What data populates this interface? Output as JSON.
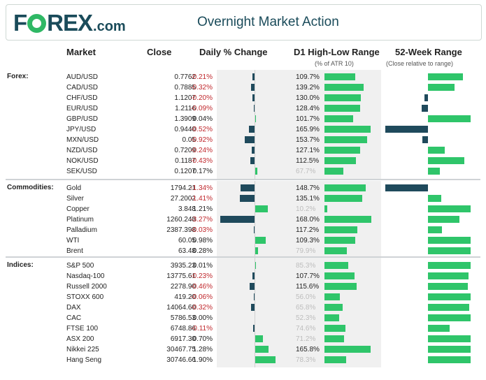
{
  "header": {
    "logo_letters_1": "F",
    "logo_letters_2": "REX",
    "logo_suffix": ".com",
    "title": "Overnight Market Action"
  },
  "columns": {
    "market": "Market",
    "close": "Close",
    "daily_change": "Daily % Change",
    "d1_range": "D1 High-Low Range",
    "d1_range_sub": "(% of ATR 10)",
    "week52": "52-Week Range",
    "week52_sub": "(Close relative to range)"
  },
  "colors": {
    "negative_bar": "#1f4a5c",
    "positive_bar": "#2fc56a",
    "negative_text": "#c0282d",
    "brand": "#1a4b5a"
  },
  "chart_data": {
    "type": "table",
    "title": "Overnight Market Action",
    "groups": [
      {
        "label": "Forex:",
        "rows": [
          {
            "market": "AUD/USD",
            "close": "0.7762",
            "change": "-0.21%",
            "change_val": -0.21,
            "d1": "109.7%",
            "d1_val": 109.7,
            "d1_faded": false,
            "w52": 0.78
          },
          {
            "market": "CAD/USD",
            "close": "0.7885",
            "change": "-0.32%",
            "change_val": -0.32,
            "d1": "139.2%",
            "d1_val": 139.2,
            "d1_faded": false,
            "w52": 0.6
          },
          {
            "market": "CHF/USD",
            "close": "1.1207",
            "change": "-0.20%",
            "change_val": -0.2,
            "d1": "130.0%",
            "d1_val": 130.0,
            "d1_faded": false,
            "w52": -0.08
          },
          {
            "market": "EUR/USD",
            "close": "1.2116",
            "change": "-0.09%",
            "change_val": -0.09,
            "d1": "128.4%",
            "d1_val": 128.4,
            "d1_faded": false,
            "w52": -0.14
          },
          {
            "market": "GBP/USD",
            "close": "1.3909",
            "change": "0.04%",
            "change_val": 0.04,
            "d1": "101.7%",
            "d1_val": 101.7,
            "d1_faded": false,
            "w52": 0.95
          },
          {
            "market": "JPY/USD",
            "close": "0.9440",
            "change": "-0.52%",
            "change_val": -0.52,
            "d1": "165.9%",
            "d1_val": 165.9,
            "d1_faded": false,
            "w52": -0.95
          },
          {
            "market": "MXN/USD",
            "close": "0.05",
            "change": "-0.92%",
            "change_val": -0.92,
            "d1": "153.7%",
            "d1_val": 153.7,
            "d1_faded": false,
            "w52": -0.12
          },
          {
            "market": "NZD/USD",
            "close": "0.7209",
            "change": "-0.24%",
            "change_val": -0.24,
            "d1": "127.1%",
            "d1_val": 127.1,
            "d1_faded": false,
            "w52": 0.37
          },
          {
            "market": "NOK/USD",
            "close": "0.1187",
            "change": "-0.43%",
            "change_val": -0.43,
            "d1": "112.5%",
            "d1_val": 112.5,
            "d1_faded": false,
            "w52": 0.81
          },
          {
            "market": "SEK/USD",
            "close": "0.1207",
            "change": "0.17%",
            "change_val": 0.17,
            "d1": "67.7%",
            "d1_val": 67.7,
            "d1_faded": true,
            "w52": 0.26
          }
        ]
      },
      {
        "label": "Commodities:",
        "rows": [
          {
            "market": "Gold",
            "close": "1794.21",
            "change": "-1.34%",
            "change_val": -1.34,
            "d1": "148.7%",
            "d1_val": 148.7,
            "d1_faded": false,
            "w52": -0.95
          },
          {
            "market": "Silver",
            "close": "27.2002",
            "change": "-1.41%",
            "change_val": -1.41,
            "d1": "135.1%",
            "d1_val": 135.1,
            "d1_faded": false,
            "w52": 0.3
          },
          {
            "market": "Copper",
            "close": "3.848",
            "change": "1.21%",
            "change_val": 1.21,
            "d1": "10.2%",
            "d1_val": 10.2,
            "d1_faded": true,
            "w52": 0.95
          },
          {
            "market": "Platinum",
            "close": "1260.248",
            "change": "-3.27%",
            "change_val": -3.27,
            "d1": "168.0%",
            "d1_val": 168.0,
            "d1_faded": false,
            "w52": 0.7
          },
          {
            "market": "Palladium",
            "close": "2387.398",
            "change": "-0.03%",
            "change_val": -0.03,
            "d1": "117.2%",
            "d1_val": 117.2,
            "d1_faded": false,
            "w52": 0.32
          },
          {
            "market": "WTI",
            "close": "60.05",
            "change": "0.98%",
            "change_val": 0.98,
            "d1": "109.3%",
            "d1_val": 109.3,
            "d1_faded": false,
            "w52": 0.95
          },
          {
            "market": "Brent",
            "close": "63.48",
            "change": "0.28%",
            "change_val": 0.28,
            "d1": "79.9%",
            "d1_val": 79.9,
            "d1_faded": true,
            "w52": 0.95
          }
        ]
      },
      {
        "label": "Indices:",
        "rows": [
          {
            "market": "S&P 500",
            "close": "3935.23",
            "change": "0.01%",
            "change_val": 0.01,
            "d1": "85.3%",
            "d1_val": 85.3,
            "d1_faded": true,
            "w52": 0.95
          },
          {
            "market": "Nasdaq-100",
            "close": "13775.61",
            "change": "-0.23%",
            "change_val": -0.23,
            "d1": "107.7%",
            "d1_val": 107.7,
            "d1_faded": false,
            "w52": 0.9
          },
          {
            "market": "Russell 2000",
            "close": "2278.90",
            "change": "-0.46%",
            "change_val": -0.46,
            "d1": "115.6%",
            "d1_val": 115.6,
            "d1_faded": false,
            "w52": 0.89
          },
          {
            "market": "STOXX 600",
            "close": "419.20",
            "change": "-0.06%",
            "change_val": -0.06,
            "d1": "56.0%",
            "d1_val": 56.0,
            "d1_faded": true,
            "w52": 0.95
          },
          {
            "market": "DAX",
            "close": "14064.60",
            "change": "-0.32%",
            "change_val": -0.32,
            "d1": "65.8%",
            "d1_val": 65.8,
            "d1_faded": true,
            "w52": 0.92
          },
          {
            "market": "CAC",
            "close": "5786.53",
            "change": "0.00%",
            "change_val": 0.0,
            "d1": "52.3%",
            "d1_val": 52.3,
            "d1_faded": true,
            "w52": 0.95
          },
          {
            "market": "FTSE 100",
            "close": "6748.86",
            "change": "-0.11%",
            "change_val": -0.11,
            "d1": "74.6%",
            "d1_val": 74.6,
            "d1_faded": true,
            "w52": 0.48
          },
          {
            "market": "ASX 200",
            "close": "6917.30",
            "change": "0.70%",
            "change_val": 0.7,
            "d1": "71.2%",
            "d1_val": 71.2,
            "d1_faded": true,
            "w52": 0.95
          },
          {
            "market": "Nikkei 225",
            "close": "30467.75",
            "change": "1.28%",
            "change_val": 1.28,
            "d1": "165.8%",
            "d1_val": 165.8,
            "d1_faded": false,
            "w52": 0.95
          },
          {
            "market": "Hang Seng",
            "close": "30746.66",
            "change": "1.90%",
            "change_val": 1.9,
            "d1": "78.3%",
            "d1_val": 78.3,
            "d1_faded": true,
            "w52": 0.95
          }
        ]
      }
    ]
  }
}
